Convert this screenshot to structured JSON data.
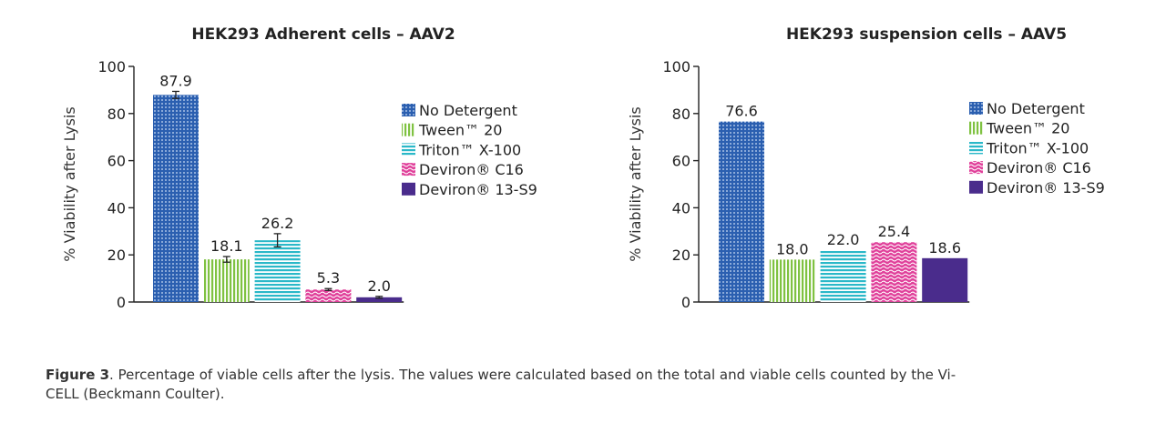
{
  "figure": {
    "caption_label": "Figure 3",
    "caption_text": ". Percentage of viable cells after the lysis. The values were calculated based on the total and viable cells counted by the Vi-CELL (Beckmann Coulter)."
  },
  "colors": {
    "no_detergent": "#2b5fb0",
    "tween": "#7fc241",
    "triton": "#2ab8c8",
    "deviron_c16": "#e0409a",
    "deviron_13s9": "#4a2c8c",
    "axis": "#222222"
  },
  "chart_data": [
    {
      "type": "bar",
      "title": "HEK293 Adherent cells – AAV2",
      "ylabel": "% Viability after Lysis",
      "xlabel": "",
      "ylim": [
        0,
        100
      ],
      "yticks": [
        0,
        20,
        40,
        60,
        80,
        100
      ],
      "categories": [
        "No Detergent",
        "Tween™ 20",
        "Triton™ X-100",
        "Deviron® C16",
        "Deviron® 13-S9"
      ],
      "values": [
        87.9,
        18.1,
        26.2,
        5.3,
        2.0
      ],
      "value_labels": [
        "87.9",
        "18.1",
        "26.2",
        "5.3",
        "2.0"
      ],
      "errors": [
        1.5,
        1.2,
        2.8,
        0.4,
        0.4
      ],
      "legend": [
        "No Detergent",
        "Tween™ 20",
        "Triton™ X-100",
        "Deviron® C16",
        "Deviron® 13-S9"
      ],
      "legend_position": "right"
    },
    {
      "type": "bar",
      "title": "HEK293 suspension cells – AAV5",
      "ylabel": "% Viability after Lysis",
      "xlabel": "",
      "ylim": [
        0,
        100
      ],
      "yticks": [
        0,
        20,
        40,
        60,
        80,
        100
      ],
      "categories": [
        "No Detergent",
        "Tween™ 20",
        "Triton™ X-100",
        "Deviron® C16",
        "Deviron® 13-S9"
      ],
      "values": [
        76.6,
        18.0,
        22.0,
        25.4,
        18.6
      ],
      "value_labels": [
        "76.6",
        "18.0",
        "22.0",
        "25.4",
        "18.6"
      ],
      "errors": [],
      "legend": [
        "No Detergent",
        "Tween™ 20",
        "Triton™ X-100",
        "Deviron® C16",
        "Deviron® 13-S9"
      ],
      "legend_position": "right"
    }
  ]
}
